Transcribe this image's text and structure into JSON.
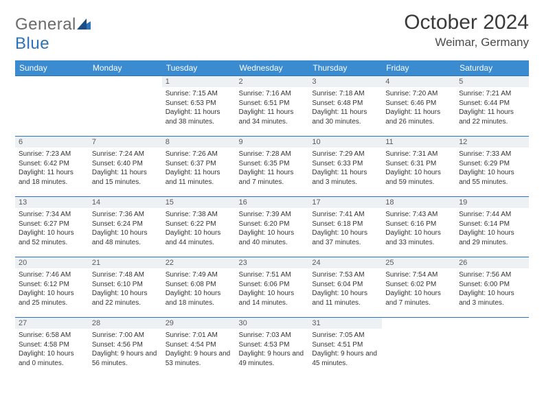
{
  "brand": {
    "part1": "General",
    "part2": "Blue"
  },
  "title": "October 2024",
  "location": "Weimar, Germany",
  "colors": {
    "header_bg": "#3a8bd0",
    "header_text": "#ffffff",
    "week_border": "#2c72b8",
    "daynum_bg": "#eef1f3",
    "text": "#3a3a3a"
  },
  "day_names": [
    "Sunday",
    "Monday",
    "Tuesday",
    "Wednesday",
    "Thursday",
    "Friday",
    "Saturday"
  ],
  "weeks": [
    [
      {
        "n": "",
        "sr": "",
        "ss": "",
        "dl": ""
      },
      {
        "n": "",
        "sr": "",
        "ss": "",
        "dl": ""
      },
      {
        "n": "1",
        "sr": "Sunrise: 7:15 AM",
        "ss": "Sunset: 6:53 PM",
        "dl": "Daylight: 11 hours and 38 minutes."
      },
      {
        "n": "2",
        "sr": "Sunrise: 7:16 AM",
        "ss": "Sunset: 6:51 PM",
        "dl": "Daylight: 11 hours and 34 minutes."
      },
      {
        "n": "3",
        "sr": "Sunrise: 7:18 AM",
        "ss": "Sunset: 6:48 PM",
        "dl": "Daylight: 11 hours and 30 minutes."
      },
      {
        "n": "4",
        "sr": "Sunrise: 7:20 AM",
        "ss": "Sunset: 6:46 PM",
        "dl": "Daylight: 11 hours and 26 minutes."
      },
      {
        "n": "5",
        "sr": "Sunrise: 7:21 AM",
        "ss": "Sunset: 6:44 PM",
        "dl": "Daylight: 11 hours and 22 minutes."
      }
    ],
    [
      {
        "n": "6",
        "sr": "Sunrise: 7:23 AM",
        "ss": "Sunset: 6:42 PM",
        "dl": "Daylight: 11 hours and 18 minutes."
      },
      {
        "n": "7",
        "sr": "Sunrise: 7:24 AM",
        "ss": "Sunset: 6:40 PM",
        "dl": "Daylight: 11 hours and 15 minutes."
      },
      {
        "n": "8",
        "sr": "Sunrise: 7:26 AM",
        "ss": "Sunset: 6:37 PM",
        "dl": "Daylight: 11 hours and 11 minutes."
      },
      {
        "n": "9",
        "sr": "Sunrise: 7:28 AM",
        "ss": "Sunset: 6:35 PM",
        "dl": "Daylight: 11 hours and 7 minutes."
      },
      {
        "n": "10",
        "sr": "Sunrise: 7:29 AM",
        "ss": "Sunset: 6:33 PM",
        "dl": "Daylight: 11 hours and 3 minutes."
      },
      {
        "n": "11",
        "sr": "Sunrise: 7:31 AM",
        "ss": "Sunset: 6:31 PM",
        "dl": "Daylight: 10 hours and 59 minutes."
      },
      {
        "n": "12",
        "sr": "Sunrise: 7:33 AM",
        "ss": "Sunset: 6:29 PM",
        "dl": "Daylight: 10 hours and 55 minutes."
      }
    ],
    [
      {
        "n": "13",
        "sr": "Sunrise: 7:34 AM",
        "ss": "Sunset: 6:27 PM",
        "dl": "Daylight: 10 hours and 52 minutes."
      },
      {
        "n": "14",
        "sr": "Sunrise: 7:36 AM",
        "ss": "Sunset: 6:24 PM",
        "dl": "Daylight: 10 hours and 48 minutes."
      },
      {
        "n": "15",
        "sr": "Sunrise: 7:38 AM",
        "ss": "Sunset: 6:22 PM",
        "dl": "Daylight: 10 hours and 44 minutes."
      },
      {
        "n": "16",
        "sr": "Sunrise: 7:39 AM",
        "ss": "Sunset: 6:20 PM",
        "dl": "Daylight: 10 hours and 40 minutes."
      },
      {
        "n": "17",
        "sr": "Sunrise: 7:41 AM",
        "ss": "Sunset: 6:18 PM",
        "dl": "Daylight: 10 hours and 37 minutes."
      },
      {
        "n": "18",
        "sr": "Sunrise: 7:43 AM",
        "ss": "Sunset: 6:16 PM",
        "dl": "Daylight: 10 hours and 33 minutes."
      },
      {
        "n": "19",
        "sr": "Sunrise: 7:44 AM",
        "ss": "Sunset: 6:14 PM",
        "dl": "Daylight: 10 hours and 29 minutes."
      }
    ],
    [
      {
        "n": "20",
        "sr": "Sunrise: 7:46 AM",
        "ss": "Sunset: 6:12 PM",
        "dl": "Daylight: 10 hours and 25 minutes."
      },
      {
        "n": "21",
        "sr": "Sunrise: 7:48 AM",
        "ss": "Sunset: 6:10 PM",
        "dl": "Daylight: 10 hours and 22 minutes."
      },
      {
        "n": "22",
        "sr": "Sunrise: 7:49 AM",
        "ss": "Sunset: 6:08 PM",
        "dl": "Daylight: 10 hours and 18 minutes."
      },
      {
        "n": "23",
        "sr": "Sunrise: 7:51 AM",
        "ss": "Sunset: 6:06 PM",
        "dl": "Daylight: 10 hours and 14 minutes."
      },
      {
        "n": "24",
        "sr": "Sunrise: 7:53 AM",
        "ss": "Sunset: 6:04 PM",
        "dl": "Daylight: 10 hours and 11 minutes."
      },
      {
        "n": "25",
        "sr": "Sunrise: 7:54 AM",
        "ss": "Sunset: 6:02 PM",
        "dl": "Daylight: 10 hours and 7 minutes."
      },
      {
        "n": "26",
        "sr": "Sunrise: 7:56 AM",
        "ss": "Sunset: 6:00 PM",
        "dl": "Daylight: 10 hours and 3 minutes."
      }
    ],
    [
      {
        "n": "27",
        "sr": "Sunrise: 6:58 AM",
        "ss": "Sunset: 4:58 PM",
        "dl": "Daylight: 10 hours and 0 minutes."
      },
      {
        "n": "28",
        "sr": "Sunrise: 7:00 AM",
        "ss": "Sunset: 4:56 PM",
        "dl": "Daylight: 9 hours and 56 minutes."
      },
      {
        "n": "29",
        "sr": "Sunrise: 7:01 AM",
        "ss": "Sunset: 4:54 PM",
        "dl": "Daylight: 9 hours and 53 minutes."
      },
      {
        "n": "30",
        "sr": "Sunrise: 7:03 AM",
        "ss": "Sunset: 4:53 PM",
        "dl": "Daylight: 9 hours and 49 minutes."
      },
      {
        "n": "31",
        "sr": "Sunrise: 7:05 AM",
        "ss": "Sunset: 4:51 PM",
        "dl": "Daylight: 9 hours and 45 minutes."
      },
      {
        "n": "",
        "sr": "",
        "ss": "",
        "dl": ""
      },
      {
        "n": "",
        "sr": "",
        "ss": "",
        "dl": ""
      }
    ]
  ]
}
